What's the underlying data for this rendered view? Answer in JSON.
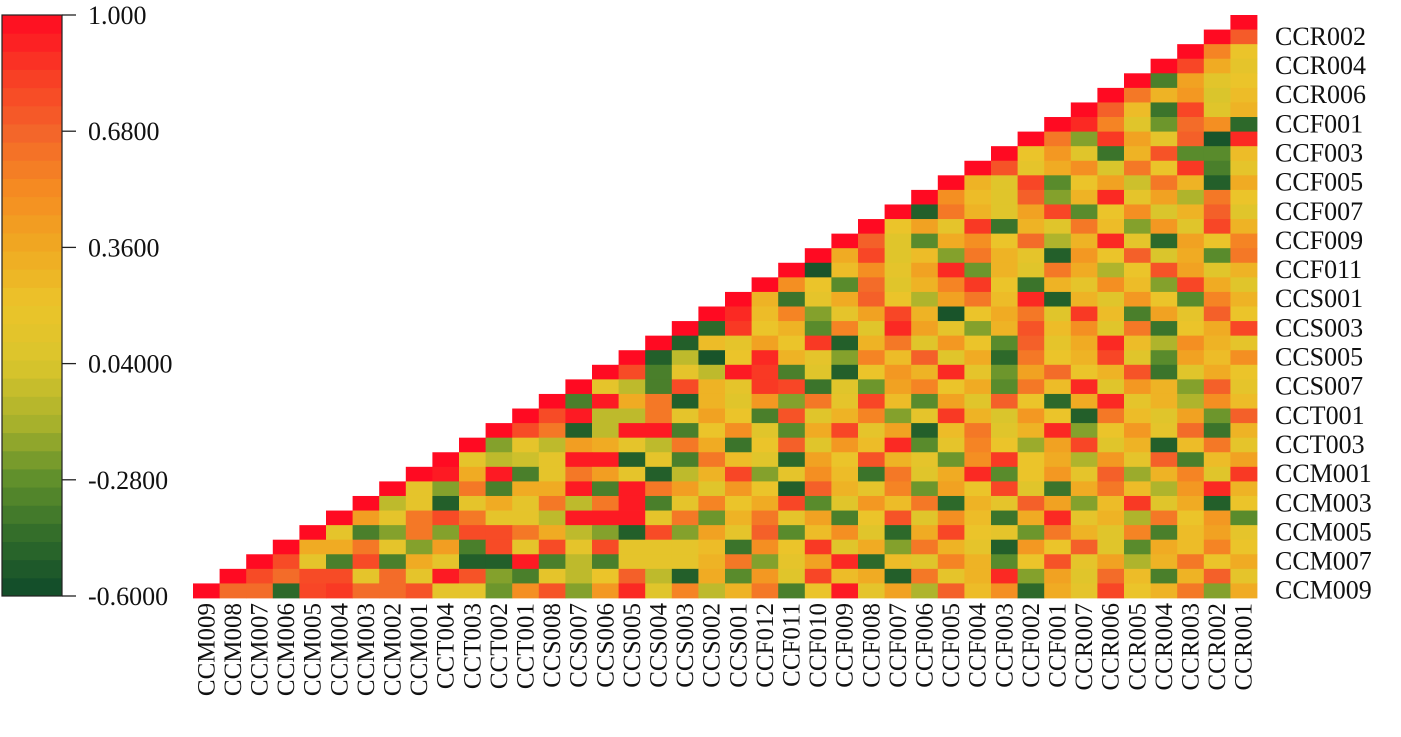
{
  "chart_data": {
    "type": "heatmap",
    "title": "",
    "layout": "upper-triangle",
    "grid": false,
    "legend": "left",
    "colorbar": {
      "min": -0.6,
      "max": 1.0,
      "ticks": [
        "1.000",
        "0.6800",
        "0.3600",
        "0.04000",
        "-0.2800",
        "-0.6000"
      ],
      "tick_values": [
        1.0,
        0.68,
        0.36,
        0.04,
        -0.28,
        -0.6
      ],
      "colors": {
        "-0.6": "#0f4a2a",
        "-0.44": "#2f6b2a",
        "-0.28": "#5f8f2c",
        "-0.12": "#a9b22c",
        "0.04": "#d9c52c",
        "0.2": "#ebc42a",
        "0.36": "#f0a922",
        "0.52": "#f58b22",
        "0.68": "#f3652a",
        "0.84": "#f93c24",
        "1.0": "#ff0a22"
      }
    },
    "rows": [
      "CCR001",
      "CCR002",
      "CCR003",
      "CCR004",
      "CCR005",
      "CCR006",
      "CCR007",
      "CCF001",
      "CCF002",
      "CCF003",
      "CCF004",
      "CCF005",
      "CCF006",
      "CCF007",
      "CCF008",
      "CCF009",
      "CCF010",
      "CCF011",
      "CCF012",
      "CCS001",
      "CCS002",
      "CCS003",
      "CCS004",
      "CCS005",
      "CCS006",
      "CCS007",
      "CCS008",
      "CCT001",
      "CCT002",
      "CCT003",
      "CCT004",
      "CCM001",
      "CCM002",
      "CCM003",
      "CCM004",
      "CCM005",
      "CCM006",
      "CCM007",
      "CCM008",
      "CCM009"
    ],
    "right_labels": [
      "CCR002",
      "CCR004",
      "CCR006",
      "CCF001",
      "CCF003",
      "CCF005",
      "CCF007",
      "CCF009",
      "CCF011",
      "CCS001",
      "CCS003",
      "CCS005",
      "CCS007",
      "CCT001",
      "CCT003",
      "CCM001",
      "CCM003",
      "CCM005",
      "CCM007",
      "CCM009"
    ],
    "columns": [
      "CCM009",
      "CCM008",
      "CCM007",
      "CCM006",
      "CCM005",
      "CCM004",
      "CCM003",
      "CCM002",
      "CCM001",
      "CCT004",
      "CCT003",
      "CCT002",
      "CCT001",
      "CCS008",
      "CCS007",
      "CCS006",
      "CCS005",
      "CCS004",
      "CCS003",
      "CCS002",
      "CCS001",
      "CCF012",
      "CCF011",
      "CCF010",
      "CCF009",
      "CCF008",
      "CCF007",
      "CCF006",
      "CCF005",
      "CCF004",
      "CCF003",
      "CCF002",
      "CCF001",
      "CCR007",
      "CCR006",
      "CCR005",
      "CCR004",
      "CCR003",
      "CCR002",
      "CCR001"
    ],
    "values": [
      [
        1
      ],
      [
        1,
        0.72
      ],
      [
        1,
        0.55,
        0.2
      ],
      [
        1,
        0.8,
        0.35,
        0.15
      ],
      [
        1,
        -0.35,
        0.4,
        0.12,
        0.2
      ],
      [
        1,
        0.6,
        0.3,
        0.45,
        0.05,
        0.25
      ],
      [
        1,
        0.7,
        0.25,
        -0.4,
        0.8,
        0.1,
        0.3
      ],
      [
        1,
        0.9,
        0.55,
        0.1,
        -0.25,
        0.65,
        0.5,
        -0.45
      ],
      [
        1,
        0.6,
        -0.2,
        0.85,
        0.4,
        0.15,
        0.7,
        -0.55,
        0.9
      ],
      [
        1,
        0.2,
        0.45,
        0.1,
        -0.4,
        0.3,
        0.75,
        -0.3,
        -0.3,
        0.25
      ],
      [
        1,
        0.75,
        0.15,
        0.35,
        0.5,
        0.05,
        0.6,
        0.2,
        0.85,
        -0.35,
        0.15
      ],
      [
        1,
        0.3,
        0.1,
        0.8,
        -0.3,
        0.2,
        0.4,
        0.0,
        0.6,
        0.3,
        -0.5,
        0.35
      ],
      [
        1,
        0.5,
        0.25,
        0.1,
        0.7,
        -0.2,
        0.3,
        0.9,
        0.15,
        0.4,
        -0.1,
        0.6,
        0.2
      ],
      [
        1,
        -0.5,
        0.6,
        0.3,
        0.1,
        0.4,
        0.8,
        -0.3,
        0.2,
        0.5,
        0.05,
        0.3,
        0.7,
        0.1
      ],
      [
        1,
        0.2,
        0.4,
        0.15,
        0.85,
        -0.4,
        0.3,
        0.1,
        0.6,
        0.25,
        -0.2,
        0.45,
        0.1,
        0.8,
        0.3
      ],
      [
        1,
        0.7,
        0.1,
        -0.3,
        0.35,
        0.5,
        0.2,
        0.65,
        -0.1,
        0.3,
        0.9,
        0.15,
        -0.45,
        0.4,
        0.2,
        0.55
      ],
      [
        1,
        0.35,
        0.8,
        0.1,
        0.25,
        -0.2,
        0.6,
        0.3,
        0.15,
        -0.5,
        0.45,
        0.2,
        0.7,
        0.05,
        0.35,
        -0.3,
        0.6
      ],
      [
        1,
        -0.55,
        0.25,
        0.5,
        0.15,
        0.4,
        0.9,
        -0.25,
        0.3,
        0.1,
        0.6,
        0.35,
        -0.1,
        0.2,
        0.75,
        0.4,
        0.1,
        0.3
      ],
      [
        1,
        0.5,
        0.2,
        -0.3,
        0.65,
        0.1,
        0.3,
        0.55,
        0.85,
        0.2,
        -0.4,
        0.3,
        0.15,
        0.5,
        0.25,
        -0.2,
        0.8,
        0.35,
        0.1
      ],
      [
        1,
        0.3,
        -0.4,
        0.15,
        0.35,
        0.7,
        0.2,
        -0.1,
        0.4,
        0.6,
        0.25,
        0.9,
        -0.5,
        0.3,
        0.1,
        0.45,
        0.2,
        -0.3,
        0.55,
        0.3
      ],
      [
        1,
        0.9,
        0.25,
        0.55,
        -0.2,
        0.15,
        0.4,
        0.8,
        0.3,
        -0.55,
        0.2,
        0.35,
        0.6,
        0.1,
        0.85,
        0.25,
        -0.35,
        0.4,
        0.15,
        0.7,
        0.2
      ],
      [
        1,
        -0.45,
        0.85,
        0.2,
        0.3,
        -0.3,
        0.55,
        0.1,
        0.9,
        0.4,
        0.15,
        -0.2,
        0.3,
        0.75,
        0.25,
        0.5,
        0.1,
        0.6,
        -0.4,
        0.2,
        0.35,
        0.8
      ],
      [
        1,
        -0.5,
        0.25,
        0.15,
        0.4,
        0.2,
        0.85,
        -0.5,
        0.3,
        0.6,
        0.1,
        0.45,
        0.2,
        -0.3,
        0.7,
        0.15,
        0.35,
        0.9,
        0.25,
        -0.1,
        0.5,
        0.3,
        0.15
      ],
      [
        1,
        -0.5,
        -0.05,
        -0.55,
        0.2,
        0.9,
        0.3,
        0.15,
        -0.2,
        0.55,
        0.25,
        0.7,
        0.1,
        0.35,
        -0.45,
        0.6,
        0.2,
        0.3,
        0.8,
        0.1,
        -0.3,
        0.4,
        0.25,
        0.5
      ],
      [
        1,
        0.78,
        -0.35,
        0.15,
        -0.05,
        0.95,
        0.85,
        -0.35,
        0.1,
        -0.5,
        0.2,
        0.45,
        0.3,
        0.9,
        0.15,
        -0.25,
        0.4,
        0.65,
        0.2,
        0.3,
        0.75,
        -0.4,
        0.1,
        0.35,
        0.2
      ],
      [
        1,
        0.15,
        -0.05,
        -0.35,
        0.78,
        0.3,
        0.15,
        0.85,
        0.8,
        -0.4,
        0.1,
        -0.25,
        0.4,
        0.55,
        0.2,
        0.35,
        -0.3,
        0.6,
        0.25,
        0.9,
        0.1,
        0.45,
        0.3,
        -0.2,
        0.7,
        0.15
      ],
      [
        1,
        -0.35,
        0.95,
        0.35,
        0.6,
        -0.5,
        0.3,
        0.1,
        0.45,
        -0.2,
        0.6,
        0.15,
        0.8,
        0.25,
        -0.3,
        0.4,
        0.1,
        0.7,
        0.2,
        -0.45,
        0.35,
        0.9,
        0.15,
        0.3,
        -0.1,
        0.5,
        0.25
      ],
      [
        1,
        0.78,
        0.95,
        -0.05,
        -0.05,
        0.6,
        0.15,
        0.4,
        0.2,
        -0.35,
        0.75,
        0.1,
        0.3,
        0.55,
        -0.2,
        0.15,
        0.85,
        0.3,
        0.05,
        0.45,
        0.2,
        -0.5,
        0.6,
        0.25,
        0.1,
        0.4,
        -0.25,
        0.7
      ],
      [
        1,
        0.78,
        0.6,
        -0.5,
        -0.05,
        0.95,
        0.95,
        -0.35,
        0.2,
        0.5,
        0.1,
        -0.3,
        0.35,
        0.8,
        0.15,
        0.4,
        -0.5,
        0.25,
        0.6,
        0.1,
        0.3,
        0.9,
        -0.2,
        0.2,
        0.45,
        0.15,
        0.65,
        -0.4,
        0.3
      ],
      [
        1,
        -0.2,
        0.15,
        -0.05,
        0.42,
        0.35,
        0.15,
        -0.05,
        0.6,
        0.35,
        -0.4,
        0.2,
        0.7,
        0.1,
        0.45,
        0.25,
        0.9,
        -0.3,
        0.15,
        0.55,
        0.2,
        -0.15,
        0.4,
        0.8,
        0.1,
        0.3,
        -0.5,
        0.25,
        0.6,
        0.15
      ],
      [
        1,
        0.15,
        -0.05,
        0.0,
        0.15,
        0.95,
        0.95,
        -0.5,
        0.15,
        -0.35,
        0.6,
        0.25,
        0.1,
        -0.45,
        0.4,
        0.2,
        0.75,
        0.3,
        0.15,
        -0.25,
        0.5,
        0.85,
        0.2,
        0.35,
        -0.1,
        0.45,
        0.15,
        0.7,
        -0.35,
        0.25,
        0.4
      ],
      [
        1,
        0.95,
        0.35,
        0.95,
        -0.35,
        0.15,
        0.6,
        0.42,
        0.15,
        -0.5,
        -0.05,
        0.3,
        0.8,
        -0.2,
        0.15,
        0.5,
        0.25,
        -0.4,
        0.6,
        0.1,
        0.35,
        0.9,
        -0.3,
        0.2,
        0.45,
        0.15,
        0.7,
        -0.15,
        0.3,
        0.55,
        0.1,
        0.85
      ],
      [
        1,
        0.15,
        -0.2,
        0.6,
        -0.35,
        0.35,
        0.35,
        0.95,
        -0.35,
        0.95,
        0.6,
        0.42,
        0.1,
        0.45,
        0.2,
        -0.5,
        0.7,
        0.3,
        0.15,
        0.55,
        -0.25,
        0.4,
        0.2,
        0.8,
        0.1,
        -0.4,
        0.35,
        0.6,
        0.25,
        -0.1,
        0.45,
        0.9,
        0.3
      ],
      [
        1,
        -0.05,
        0.15,
        -0.5,
        0.15,
        0.35,
        0.15,
        0.6,
        -0.05,
        0.6,
        0.95,
        -0.35,
        0.15,
        0.55,
        0.2,
        0.35,
        0.8,
        -0.3,
        0.1,
        0.45,
        0.25,
        0.6,
        -0.45,
        0.3,
        0.15,
        0.7,
        0.4,
        -0.2,
        0.25,
        0.85,
        0.1,
        0.35,
        -0.5,
        0.2
      ],
      [
        1,
        0.42,
        0.15,
        0.6,
        0.78,
        0.6,
        0.15,
        0.15,
        -0.05,
        0.95,
        0.95,
        0.95,
        0.15,
        0.6,
        -0.25,
        0.3,
        0.6,
        0.15,
        0.4,
        -0.35,
        0.2,
        0.75,
        0.1,
        0.5,
        0.25,
        -0.4,
        0.35,
        0.9,
        0.15,
        0.3,
        -0.1,
        0.6,
        0.2,
        0.45,
        -0.3
      ],
      [
        1,
        0.15,
        -0.35,
        -0.2,
        0.6,
        -0.2,
        0.78,
        0.78,
        0.6,
        0.35,
        -0.05,
        -0.2,
        -0.5,
        0.78,
        -0.2,
        0.4,
        0.15,
        0.7,
        -0.3,
        0.25,
        0.5,
        0.1,
        -0.45,
        0.35,
        0.8,
        0.2,
        0.15,
        -0.25,
        0.6,
        0.3,
        0.1,
        0.55,
        -0.35,
        0.25,
        0.4,
        0.15
      ],
      [
        1,
        0.35,
        0.35,
        0.6,
        0.15,
        -0.2,
        0.42,
        -0.35,
        0.78,
        0.15,
        0.78,
        0.15,
        0.78,
        0.15,
        0.15,
        0.15,
        0.25,
        -0.4,
        0.5,
        0.2,
        0.85,
        0.1,
        0.35,
        -0.2,
        0.6,
        0.3,
        0.15,
        -0.5,
        0.45,
        0.2,
        0.7,
        0.1,
        -0.3,
        0.35,
        0.25,
        0.55,
        0.2
      ],
      [
        1,
        0.78,
        0.15,
        -0.35,
        0.78,
        -0.35,
        0.35,
        0.15,
        -0.5,
        -0.5,
        0.95,
        -0.35,
        -0.05,
        -0.35,
        0.15,
        0.15,
        0.15,
        0.3,
        0.6,
        -0.2,
        0.15,
        0.4,
        0.9,
        -0.45,
        0.25,
        0.1,
        0.55,
        0.3,
        -0.3,
        0.2,
        0.75,
        0.15,
        0.4,
        -0.1,
        0.3,
        0.6,
        0.2,
        0.35
      ],
      [
        1,
        0.78,
        0.65,
        0.78,
        0.78,
        0.15,
        0.65,
        0.15,
        0.95,
        0.75,
        -0.2,
        -0.35,
        0.15,
        -0.05,
        0.2,
        0.7,
        -0.05,
        -0.5,
        0.35,
        -0.3,
        0.45,
        0.1,
        0.8,
        0.25,
        0.35,
        -0.5,
        0.6,
        0.15,
        0.3,
        0.9,
        -0.2,
        0.4,
        0.1,
        0.65,
        0.25,
        -0.35,
        0.3,
        0.7,
        0.15
      ],
      [
        1,
        0.65,
        0.65,
        -0.45,
        0.8,
        0.85,
        0.65,
        0.65,
        0.75,
        0.15,
        0.15,
        -0.25,
        0.5,
        0.75,
        -0.2,
        0.45,
        0.9,
        0.1,
        0.55,
        -0.05,
        0.3,
        0.6,
        -0.35,
        0.2,
        0.95,
        0.15,
        0.4,
        -0.1,
        0.7,
        0.25,
        0.5,
        -0.45,
        0.35,
        0.15,
        0.8,
        0.2,
        0.3,
        0.6,
        -0.2,
        0.35
      ]
    ]
  }
}
